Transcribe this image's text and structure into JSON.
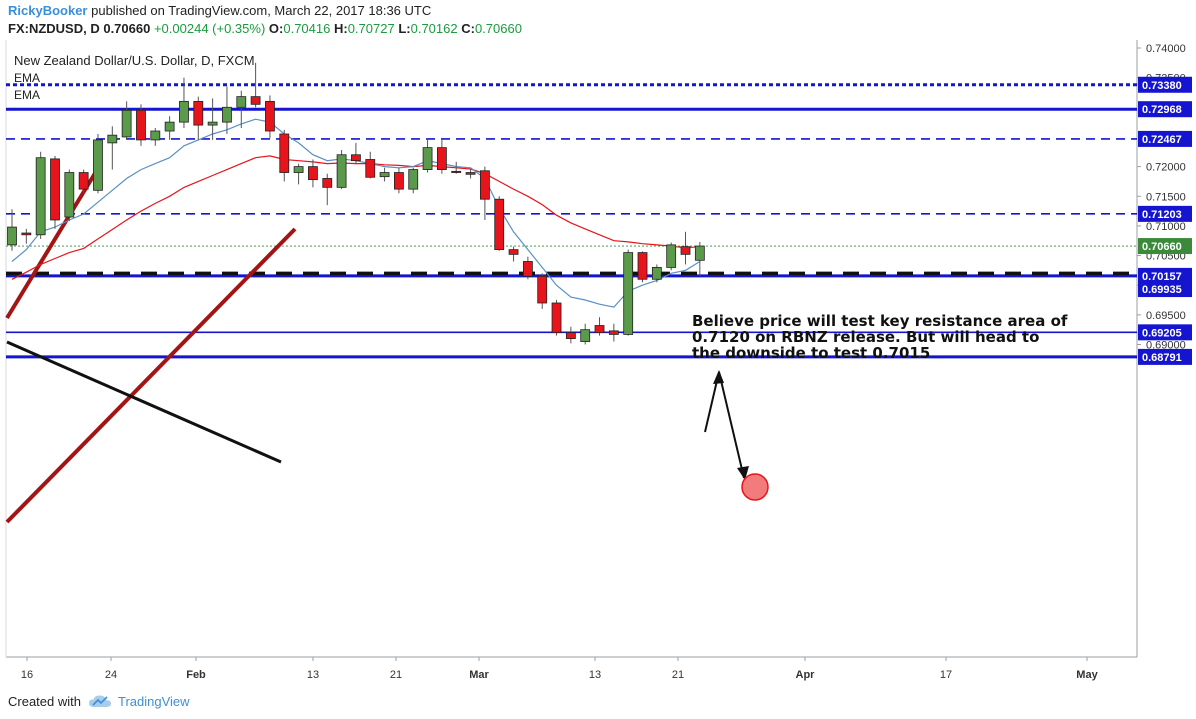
{
  "header": {
    "author": "RickyBooker",
    "published_text": "published on TradingView.com, March 22, 2017 18:36 UTC",
    "symbol": "FX:NZDUSD, D",
    "last": "0.70660",
    "change": "+0.00244 (+0.35%)",
    "o_label": "O:",
    "o_value": "0.70416",
    "h_label": "H:",
    "h_value": "0.70727",
    "l_label": "L:",
    "l_value": "0.70162",
    "c_label": "C:",
    "c_value": "0.70660"
  },
  "legend": {
    "title": "New Zealand Dollar/U.S. Dollar, D, FXCM",
    "ema1": "EMA",
    "ema2": "EMA"
  },
  "annotation": {
    "line1": "Believe price will test key resistance area of",
    "line2": "0.7120 on RBNZ release. But will head to",
    "line3": "the downside to test 0.7015"
  },
  "footer": {
    "created_with": "Created with",
    "brand": "TradingView"
  },
  "colors": {
    "up": "#5a9a4a",
    "down": "#e8141c",
    "level_blue": "#1515d0",
    "ema_red": "#e8141c",
    "ema_blue": "#5b8fc5",
    "trend_dark_red": "#a31515",
    "current_price": "#3a8a3a"
  },
  "chart_data": {
    "type": "candlestick",
    "title": "New Zealand Dollar/U.S. Dollar, D, FXCM",
    "ylim": [
      0.6865,
      0.7408
    ],
    "y_ticks": [
      "0.74000",
      "0.73500",
      "0.72000",
      "0.71500",
      "0.71000",
      "0.70500",
      "0.70000",
      "0.69500",
      "0.69000"
    ],
    "x_ticks": [
      "16",
      "24",
      "Feb",
      "13",
      "21",
      "Mar",
      "13",
      "21",
      "Apr",
      "17",
      "May"
    ],
    "current_price": "0.70660",
    "levels": [
      {
        "label": "0.73380",
        "value": 0.7338,
        "style": "dotted",
        "weight": "heavy"
      },
      {
        "label": "0.72968",
        "value": 0.72968,
        "style": "solid",
        "weight": "heavy"
      },
      {
        "label": "0.72467",
        "value": 0.72467,
        "style": "dashed",
        "weight": "normal"
      },
      {
        "label": "0.71203",
        "value": 0.71203,
        "style": "dashed",
        "weight": "normal"
      },
      {
        "label": "0.70157",
        "value": 0.70157,
        "style": "solid",
        "weight": "heavy"
      },
      {
        "label": "0.69935",
        "value": 0.69935,
        "style": "none",
        "weight": "normal"
      },
      {
        "label": "0.69205",
        "value": 0.69205,
        "style": "solid",
        "weight": "normal"
      },
      {
        "label": "0.68791",
        "value": 0.68791,
        "style": "solid",
        "weight": "heavy"
      }
    ],
    "support_dashed_black": 0.702,
    "candles": [
      {
        "o": 0.7068,
        "h": 0.7128,
        "l": 0.7058,
        "c": 0.7098
      },
      {
        "o": 0.7088,
        "h": 0.7095,
        "l": 0.707,
        "c": 0.7085
      },
      {
        "o": 0.7085,
        "h": 0.7225,
        "l": 0.7078,
        "c": 0.7215
      },
      {
        "o": 0.7213,
        "h": 0.7218,
        "l": 0.7095,
        "c": 0.711
      },
      {
        "o": 0.7115,
        "h": 0.7195,
        "l": 0.7108,
        "c": 0.719
      },
      {
        "o": 0.719,
        "h": 0.7195,
        "l": 0.7155,
        "c": 0.7162
      },
      {
        "o": 0.716,
        "h": 0.7255,
        "l": 0.7155,
        "c": 0.7245
      },
      {
        "o": 0.724,
        "h": 0.7268,
        "l": 0.7195,
        "c": 0.7253
      },
      {
        "o": 0.725,
        "h": 0.731,
        "l": 0.7245,
        "c": 0.7295
      },
      {
        "o": 0.7295,
        "h": 0.7305,
        "l": 0.7235,
        "c": 0.7245
      },
      {
        "o": 0.7245,
        "h": 0.7265,
        "l": 0.7235,
        "c": 0.726
      },
      {
        "o": 0.726,
        "h": 0.7285,
        "l": 0.7245,
        "c": 0.7275
      },
      {
        "o": 0.7275,
        "h": 0.735,
        "l": 0.7265,
        "c": 0.731
      },
      {
        "o": 0.731,
        "h": 0.7318,
        "l": 0.7245,
        "c": 0.727
      },
      {
        "o": 0.727,
        "h": 0.7315,
        "l": 0.7245,
        "c": 0.7275
      },
      {
        "o": 0.7275,
        "h": 0.7335,
        "l": 0.7255,
        "c": 0.73
      },
      {
        "o": 0.73,
        "h": 0.7328,
        "l": 0.7265,
        "c": 0.7318
      },
      {
        "o": 0.7318,
        "h": 0.7375,
        "l": 0.73,
        "c": 0.7305
      },
      {
        "o": 0.731,
        "h": 0.732,
        "l": 0.7248,
        "c": 0.726
      },
      {
        "o": 0.7255,
        "h": 0.7262,
        "l": 0.7175,
        "c": 0.719
      },
      {
        "o": 0.719,
        "h": 0.7205,
        "l": 0.717,
        "c": 0.72
      },
      {
        "o": 0.72,
        "h": 0.7212,
        "l": 0.7165,
        "c": 0.7178
      },
      {
        "o": 0.718,
        "h": 0.7188,
        "l": 0.7135,
        "c": 0.7165
      },
      {
        "o": 0.7165,
        "h": 0.7228,
        "l": 0.7162,
        "c": 0.722
      },
      {
        "o": 0.722,
        "h": 0.724,
        "l": 0.7205,
        "c": 0.721
      },
      {
        "o": 0.7212,
        "h": 0.7225,
        "l": 0.718,
        "c": 0.7182
      },
      {
        "o": 0.7183,
        "h": 0.7198,
        "l": 0.7175,
        "c": 0.719
      },
      {
        "o": 0.719,
        "h": 0.7198,
        "l": 0.7155,
        "c": 0.7162
      },
      {
        "o": 0.7162,
        "h": 0.7198,
        "l": 0.7155,
        "c": 0.7195
      },
      {
        "o": 0.7195,
        "h": 0.7248,
        "l": 0.719,
        "c": 0.7232
      },
      {
        "o": 0.7232,
        "h": 0.7245,
        "l": 0.7188,
        "c": 0.7195
      },
      {
        "o": 0.7192,
        "h": 0.7208,
        "l": 0.7188,
        "c": 0.719
      },
      {
        "o": 0.719,
        "h": 0.7195,
        "l": 0.718,
        "c": 0.7187
      },
      {
        "o": 0.7193,
        "h": 0.72,
        "l": 0.711,
        "c": 0.7145
      },
      {
        "o": 0.7145,
        "h": 0.715,
        "l": 0.7058,
        "c": 0.706
      },
      {
        "o": 0.706,
        "h": 0.7065,
        "l": 0.704,
        "c": 0.7052
      },
      {
        "o": 0.704,
        "h": 0.7048,
        "l": 0.701,
        "c": 0.7015
      },
      {
        "o": 0.7015,
        "h": 0.702,
        "l": 0.696,
        "c": 0.697
      },
      {
        "o": 0.697,
        "h": 0.6975,
        "l": 0.6915,
        "c": 0.692
      },
      {
        "o": 0.692,
        "h": 0.693,
        "l": 0.6902,
        "c": 0.691
      },
      {
        "o": 0.6905,
        "h": 0.6935,
        "l": 0.69,
        "c": 0.6925
      },
      {
        "o": 0.6932,
        "h": 0.6946,
        "l": 0.6915,
        "c": 0.692
      },
      {
        "o": 0.6923,
        "h": 0.6935,
        "l": 0.6905,
        "c": 0.6917
      },
      {
        "o": 0.6917,
        "h": 0.706,
        "l": 0.6915,
        "c": 0.7055
      },
      {
        "o": 0.7055,
        "h": 0.7057,
        "l": 0.7005,
        "c": 0.701
      },
      {
        "o": 0.701,
        "h": 0.7035,
        "l": 0.7005,
        "c": 0.703
      },
      {
        "o": 0.703,
        "h": 0.7072,
        "l": 0.7025,
        "c": 0.7068
      },
      {
        "o": 0.7065,
        "h": 0.709,
        "l": 0.7035,
        "c": 0.7052
      },
      {
        "o": 0.7042,
        "h": 0.7073,
        "l": 0.7016,
        "c": 0.7066
      }
    ],
    "ema_fast": [
      0.704,
      0.706,
      0.709,
      0.7098,
      0.711,
      0.712,
      0.714,
      0.716,
      0.718,
      0.7195,
      0.7205,
      0.7215,
      0.7235,
      0.7245,
      0.7255,
      0.7262,
      0.7272,
      0.728,
      0.7275,
      0.7255,
      0.724,
      0.722,
      0.721,
      0.7213,
      0.721,
      0.7205,
      0.72,
      0.7198,
      0.72,
      0.721,
      0.7205,
      0.72,
      0.7198,
      0.718,
      0.713,
      0.709,
      0.706,
      0.703,
      0.7,
      0.698,
      0.6975,
      0.6968,
      0.6963,
      0.699,
      0.7,
      0.7008,
      0.702,
      0.7025,
      0.704
    ],
    "ema_slow": [
      0.701,
      0.7022,
      0.7035,
      0.7045,
      0.7055,
      0.7062,
      0.7078,
      0.7094,
      0.711,
      0.7125,
      0.7138,
      0.715,
      0.7165,
      0.7175,
      0.7185,
      0.7195,
      0.7205,
      0.7215,
      0.7218,
      0.7212,
      0.721,
      0.7208,
      0.7205,
      0.7206,
      0.7205,
      0.7205,
      0.7203,
      0.7202,
      0.72,
      0.7202,
      0.72,
      0.7198,
      0.7196,
      0.7188,
      0.7175,
      0.7162,
      0.715,
      0.7136,
      0.7118,
      0.7105,
      0.7095,
      0.7085,
      0.7075,
      0.7073,
      0.707,
      0.7068,
      0.7066,
      0.7063,
      0.7065
    ]
  }
}
